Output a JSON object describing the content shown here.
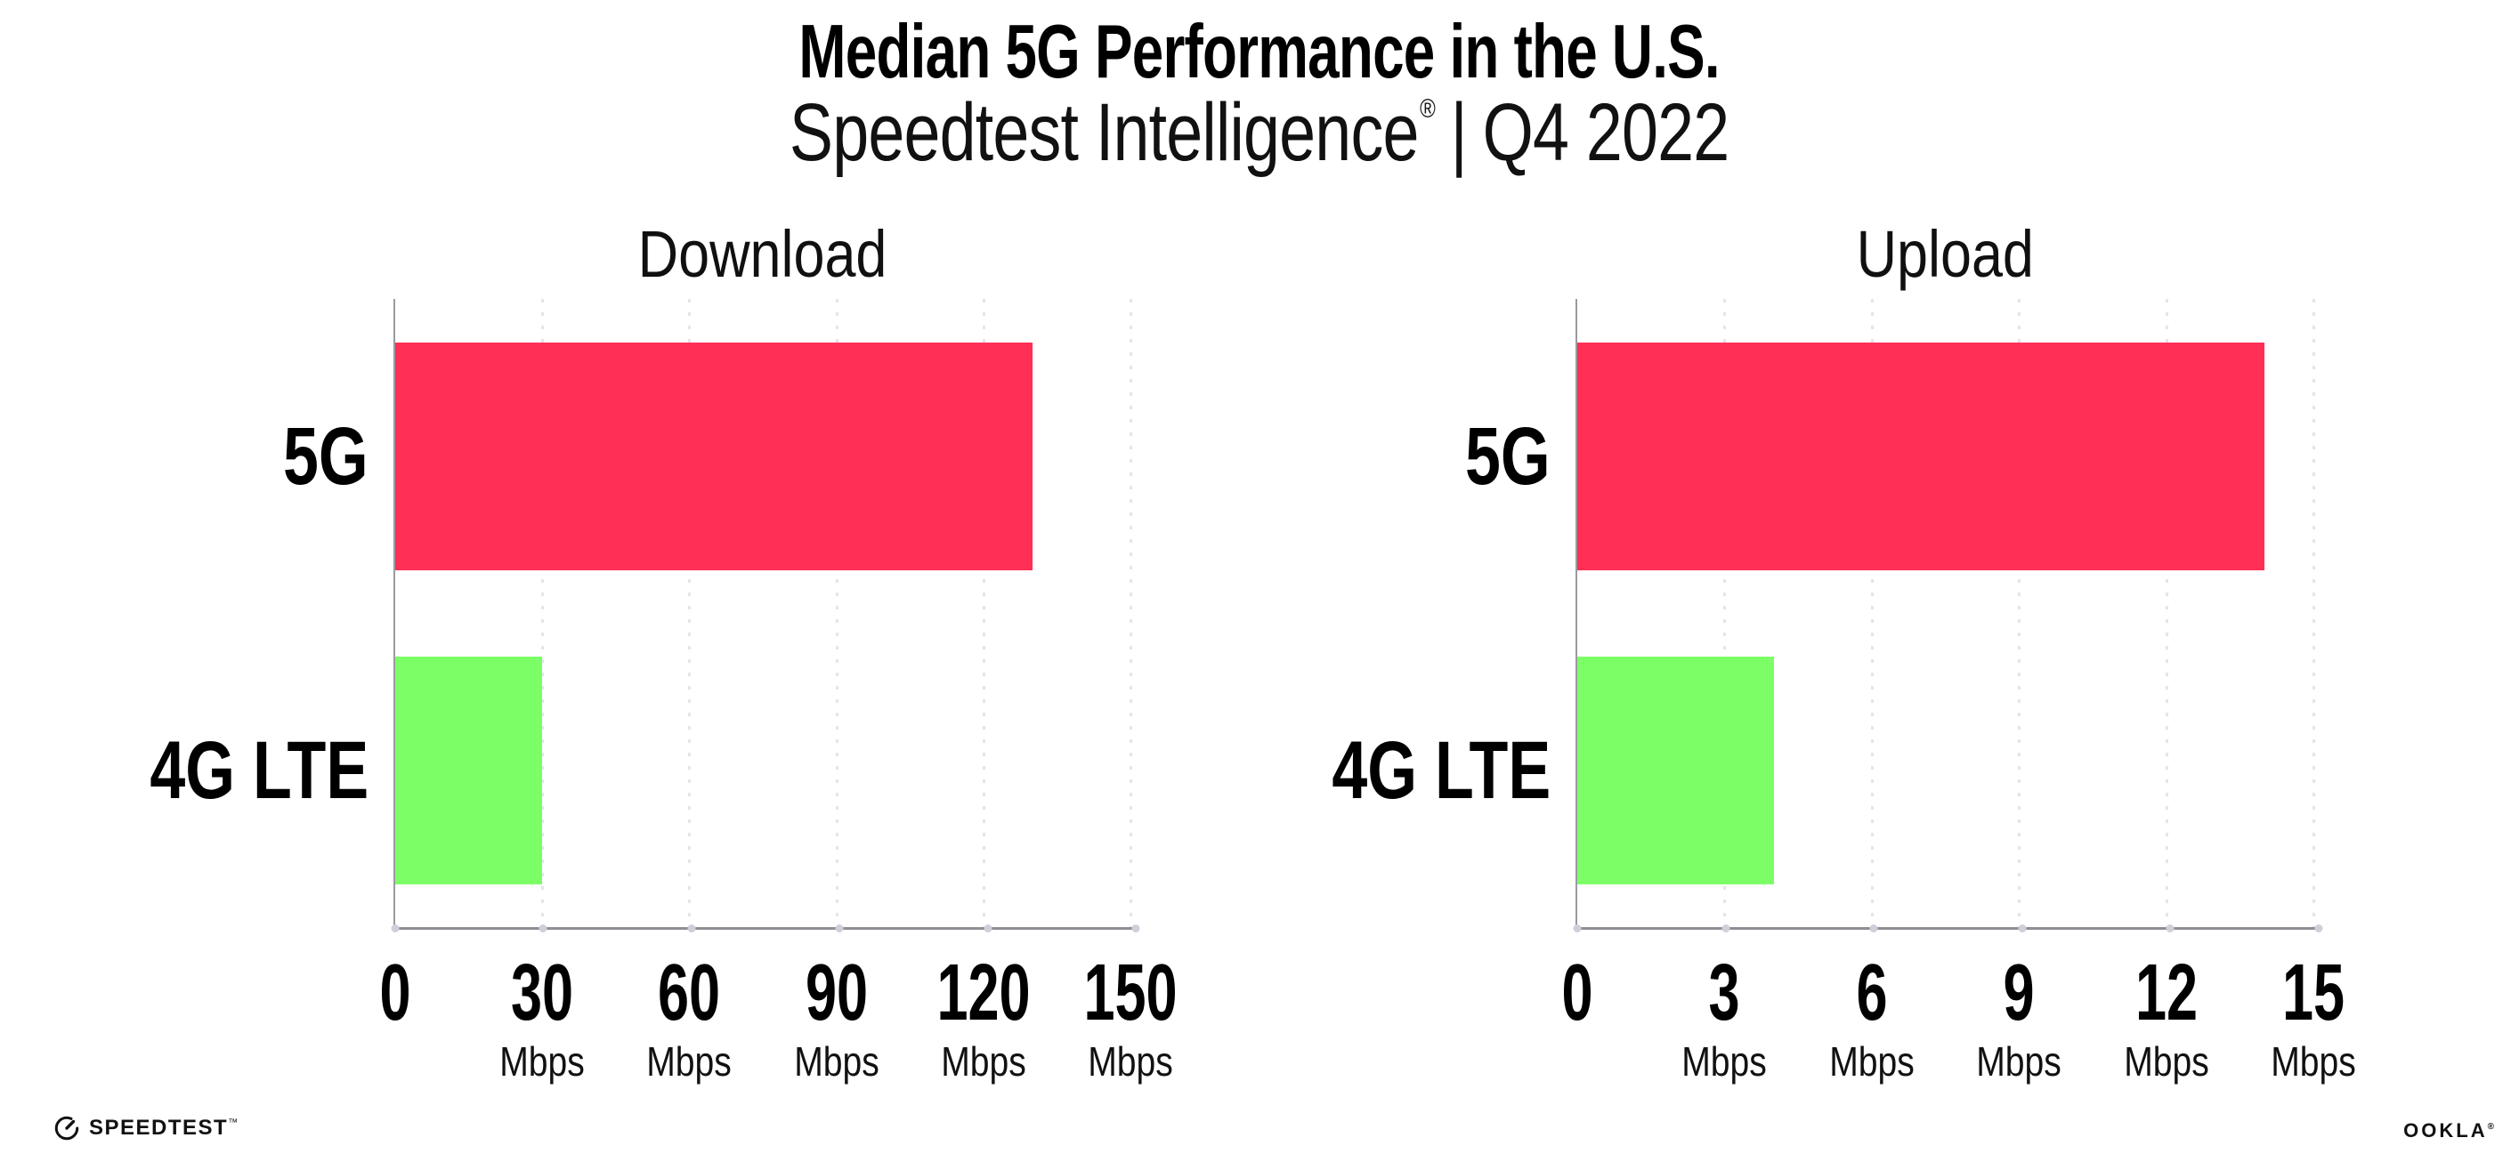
{
  "title": "Median 5G Performance in the U.S.",
  "subtitle": {
    "brand": "Speedtest Intelligence",
    "registered": "®",
    "separator": "|",
    "period": "Q4 2022"
  },
  "colors": {
    "bar_5g": "#FF2F56",
    "bar_4g_lte": "#7CFF66",
    "axis_line": "#8E8E94",
    "gridline": "#E4E4EC",
    "text": "#000000"
  },
  "footer": {
    "speedtest_label": "SPEEDTEST",
    "speedtest_trademark": "™",
    "ookla_label": "OOKLA",
    "ookla_registered": "®"
  },
  "chart_data": [
    {
      "type": "bar",
      "orientation": "horizontal",
      "title": "Download",
      "categories": [
        "5G",
        "4G LTE"
      ],
      "values": [
        130,
        30
      ],
      "unit": "Mbps",
      "xlim": [
        0,
        150
      ],
      "xticks": [
        0,
        30,
        60,
        90,
        120,
        150
      ],
      "bar_colors": [
        "#FF2F56",
        "#7CFF66"
      ],
      "grid": "vertical-dotted",
      "legend": "none"
    },
    {
      "type": "bar",
      "orientation": "horizontal",
      "title": "Upload",
      "categories": [
        "5G",
        "4G LTE"
      ],
      "values": [
        14,
        4
      ],
      "unit": "Mbps",
      "xlim": [
        0,
        15
      ],
      "xticks": [
        0,
        3,
        6,
        9,
        12,
        15
      ],
      "bar_colors": [
        "#FF2F56",
        "#7CFF66"
      ],
      "grid": "vertical-dotted",
      "legend": "none"
    }
  ]
}
